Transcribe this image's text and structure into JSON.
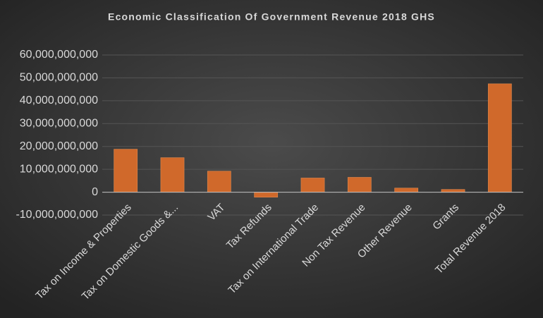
{
  "chart_data": {
    "type": "bar",
    "title": "Economic Classification Of Government Revenue 2018 GHS",
    "categories": [
      "Tax on Income & Properties",
      "Tax on Domestic Goods &...",
      "VAT",
      "Tax Refunds",
      "Tax on International Trade",
      "Non Tax Revenue",
      "Other Revenue",
      "Grants",
      "Total Revenue 2018"
    ],
    "values": [
      18800000000,
      15100000000,
      9200000000,
      -2200000000,
      6200000000,
      6500000000,
      1800000000,
      1200000000,
      47400000000
    ],
    "color": "#d0692b",
    "ylim": [
      -10000000000,
      60000000000
    ],
    "yticks": [
      {
        "value": -10000000000,
        "label": "-10,000,000,000"
      },
      0,
      {
        "value": 10000000000,
        "label": "10,000,000,000"
      },
      {
        "value": 20000000000,
        "label": "20,000,000,000"
      },
      {
        "value": 30000000000,
        "label": "30,000,000,000"
      },
      {
        "value": 40000000000,
        "label": "40,000,000,000"
      },
      {
        "value": 50000000000,
        "label": "50,000,000,000"
      },
      {
        "value": 60000000000,
        "label": "60,000,000,000"
      }
    ],
    "grid": true
  }
}
